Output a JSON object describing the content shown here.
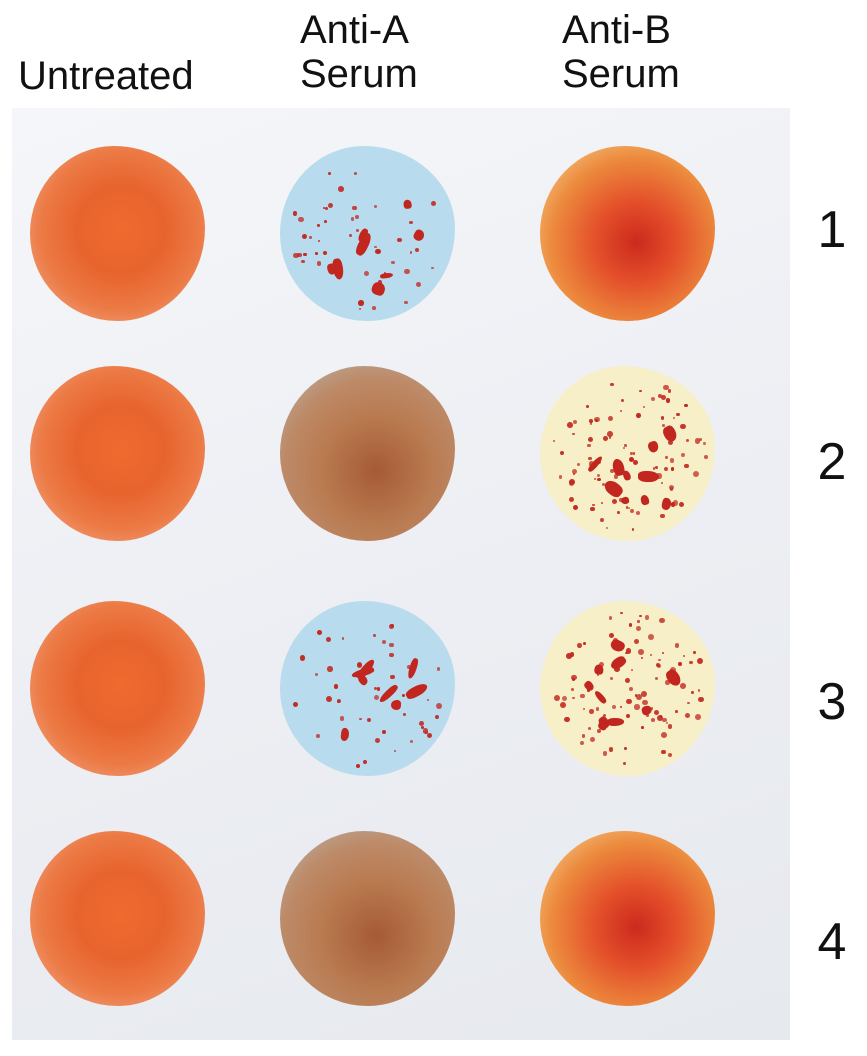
{
  "column_headers": [
    {
      "id": "untreated",
      "lines": [
        "Untreated"
      ]
    },
    {
      "id": "anti-a",
      "lines": [
        "Anti-A",
        "Serum"
      ]
    },
    {
      "id": "anti-b",
      "lines": [
        "Anti-B",
        "Serum"
      ]
    }
  ],
  "row_labels": [
    "1",
    "2",
    "3",
    "4"
  ],
  "wells": [
    {
      "row": 1,
      "column": "untreated",
      "appearance": "smooth"
    },
    {
      "row": 1,
      "column": "anti-a",
      "appearance": "agglutinated"
    },
    {
      "row": 1,
      "column": "anti-b",
      "appearance": "smooth"
    },
    {
      "row": 2,
      "column": "untreated",
      "appearance": "smooth"
    },
    {
      "row": 2,
      "column": "anti-a",
      "appearance": "smooth"
    },
    {
      "row": 2,
      "column": "anti-b",
      "appearance": "agglutinated"
    },
    {
      "row": 3,
      "column": "untreated",
      "appearance": "smooth"
    },
    {
      "row": 3,
      "column": "anti-a",
      "appearance": "agglutinated"
    },
    {
      "row": 3,
      "column": "anti-b",
      "appearance": "agglutinated"
    },
    {
      "row": 4,
      "column": "untreated",
      "appearance": "smooth"
    },
    {
      "row": 4,
      "column": "anti-a",
      "appearance": "smooth"
    },
    {
      "row": 4,
      "column": "anti-b",
      "appearance": "smooth"
    }
  ],
  "colors": {
    "untreated_blood": "#e8642e",
    "anti_a_serum": "#b9dbee",
    "anti_b_serum": "#f6efc8",
    "clump": "#c2271f",
    "mixed_brown": "#b97a50"
  }
}
